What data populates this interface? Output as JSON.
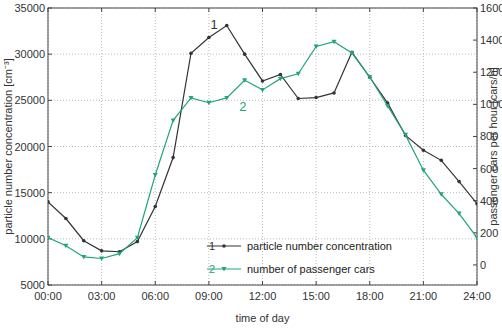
{
  "chart_data": {
    "type": "line",
    "xlabel": "time of day",
    "ylabel": "particle number concentration [cm⁻³]",
    "y2label": "passenger cars per hour [cars/h]",
    "x": [
      0,
      1,
      2,
      3,
      4,
      5,
      6,
      7,
      8,
      9,
      10,
      11,
      12,
      13,
      14,
      15,
      16,
      17,
      18,
      19,
      20,
      21,
      22,
      23,
      24
    ],
    "xlim": [
      0,
      24
    ],
    "xticks": [
      {
        "value": 0,
        "label": "00:00"
      },
      {
        "value": 3,
        "label": "03:00"
      },
      {
        "value": 6,
        "label": "06:00"
      },
      {
        "value": 9,
        "label": "09:00"
      },
      {
        "value": 12,
        "label": "12:00"
      },
      {
        "value": 15,
        "label": "15:00"
      },
      {
        "value": 18,
        "label": "18:00"
      },
      {
        "value": 21,
        "label": "21:00"
      },
      {
        "value": 24,
        "label": "24:00"
      }
    ],
    "ylim": [
      5000,
      35000
    ],
    "yticks": [
      5000,
      10000,
      15000,
      20000,
      25000,
      30000,
      35000
    ],
    "y2lim": [
      -125,
      1600
    ],
    "y2ticks": [
      0,
      200,
      400,
      600,
      800,
      1000,
      1200,
      1400,
      1600
    ],
    "grid": true,
    "legend": "lower center",
    "series": [
      {
        "name": "particle number concentration",
        "color": "#333333",
        "marker": "dot",
        "line_style": "solid",
        "values": [
          14000,
          12200,
          9800,
          8700,
          8600,
          9700,
          13500,
          18800,
          30100,
          31800,
          33100,
          30000,
          27100,
          27800,
          25200,
          25300,
          25800,
          30200,
          27500,
          24700,
          21200,
          19600,
          18500,
          16200,
          13800
        ]
      },
      {
        "name": "number of passenger cars",
        "color": "#22a57a",
        "marker": "triangle",
        "line_style": "solid",
        "axis": "y2",
        "values": [
          170,
          120,
          50,
          40,
          70,
          170,
          560,
          900,
          1040,
          1010,
          1040,
          1150,
          1090,
          1160,
          1190,
          1360,
          1390,
          1320,
          1170,
          990,
          810,
          590,
          440,
          320,
          170
        ]
      }
    ],
    "annotations": [
      {
        "text": "1",
        "x": 9.3,
        "y": 32700,
        "series": 0
      },
      {
        "text": "2",
        "x": 10.9,
        "y": 23800,
        "series": 1
      }
    ]
  }
}
